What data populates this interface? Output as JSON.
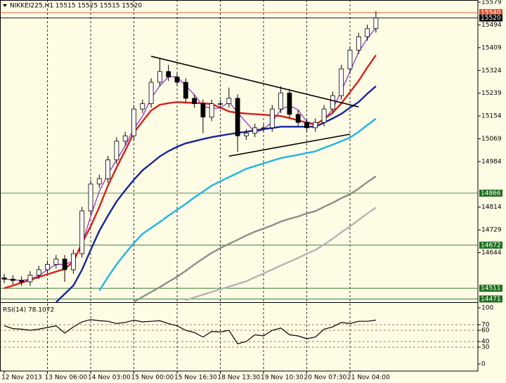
{
  "chart_data": [
    {
      "type": "candlestick",
      "title": "NIKKEI225,H1  15515 15525 15515 15520",
      "categories": [
        "12 Nov 2013",
        null,
        null,
        null,
        null,
        "13 Nov 06:00",
        null,
        null,
        null,
        null,
        "14 Nov 03:00",
        null,
        null,
        null,
        null,
        "15 Nov 00:00",
        null,
        null,
        null,
        null,
        "15 Nov 16:30",
        null,
        null,
        null,
        null,
        "18 Nov 13:30",
        null,
        null,
        null,
        null,
        "19 Nov 10:30",
        null,
        null,
        null,
        null,
        "20 Nov 07:30",
        null,
        null,
        null,
        null,
        "21 Nov 04:00",
        null,
        null,
        null
      ],
      "open": [
        14550,
        14545,
        14540,
        14535,
        14560,
        14580,
        14600,
        14620,
        14580,
        14640,
        14800,
        14900,
        14920,
        14990,
        15060,
        15080,
        15180,
        15200,
        15280,
        15320,
        15300,
        15280,
        15220,
        15200,
        15150,
        15200,
        15200,
        15220,
        15080,
        15090,
        15110,
        15110,
        15180,
        15240,
        15160,
        15130,
        15110,
        15130,
        15180,
        15230,
        15330,
        15400,
        15450,
        15480
      ],
      "high": [
        14565,
        14560,
        14555,
        14575,
        14595,
        14615,
        14635,
        14635,
        14655,
        14815,
        14915,
        14935,
        15005,
        15075,
        15095,
        15195,
        15215,
        15295,
        15370,
        15345,
        15315,
        15295,
        15235,
        15215,
        15215,
        15215,
        15260,
        15235,
        15105,
        15125,
        15125,
        15195,
        15265,
        15255,
        15175,
        15145,
        15145,
        15195,
        15245,
        15345,
        15415,
        15465,
        15495,
        15545
      ],
      "low": [
        14530,
        14525,
        14520,
        14520,
        14545,
        14565,
        14585,
        14535,
        14565,
        14625,
        14785,
        14885,
        14905,
        14975,
        15045,
        15065,
        15165,
        15185,
        15265,
        15285,
        15265,
        15205,
        15185,
        15090,
        15135,
        15185,
        15185,
        15020,
        15065,
        15075,
        15095,
        15095,
        15165,
        15145,
        15115,
        15095,
        15095,
        15115,
        15165,
        15215,
        15315,
        15385,
        15435,
        15465
      ],
      "close": [
        14545,
        14540,
        14535,
        14560,
        14580,
        14600,
        14620,
        14580,
        14640,
        14800,
        14900,
        14920,
        14990,
        15060,
        15080,
        15180,
        15200,
        15280,
        15320,
        15300,
        15280,
        15220,
        15200,
        15150,
        15200,
        15200,
        15220,
        15080,
        15090,
        15110,
        15110,
        15180,
        15240,
        15160,
        15130,
        15110,
        15130,
        15180,
        15230,
        15330,
        15400,
        15450,
        15480,
        15520
      ],
      "series": [
        {
          "color": "#9932cc",
          "values": [
            14545,
            14543,
            14540,
            14545,
            14558,
            14580,
            14600,
            14600,
            14613,
            14673,
            14780,
            14873,
            14937,
            14990,
            15043,
            15107,
            15153,
            15220,
            15267,
            15300,
            15300,
            15267,
            15233,
            15190,
            15183,
            15183,
            15207,
            15167,
            15130,
            15093,
            15103,
            15133,
            15177,
            15193,
            15177,
            15133,
            15123,
            15140,
            15180,
            15247,
            15320,
            15393,
            15443,
            15483
          ]
        },
        {
          "color": "#d42020",
          "values": [
            14511,
            14521,
            14532,
            14542,
            14553,
            14563,
            14573,
            14583,
            14611,
            14679,
            14742,
            14814,
            14894,
            14962,
            15025,
            15092,
            15134,
            15175,
            15196,
            15202,
            15206,
            15204,
            15203,
            15201,
            15199,
            15185,
            15171,
            15166,
            15163,
            15161,
            15159,
            15156,
            15154,
            15146,
            15138,
            15129,
            15121,
            15143,
            15166,
            15201,
            15243,
            15285,
            15335,
            15381
          ]
        },
        {
          "color": "#1424a0",
          "values": [
            null,
            null,
            null,
            null,
            null,
            null,
            14459,
            14490,
            14521,
            14580,
            14654,
            14725,
            14782,
            14835,
            14877,
            14916,
            14951,
            14977,
            15003,
            15023,
            15039,
            15052,
            15060,
            15068,
            15075,
            15081,
            15086,
            15091,
            15095,
            15100,
            15105,
            15109,
            15114,
            15114,
            15114,
            15114,
            15114,
            15129,
            15145,
            15162,
            15185,
            15206,
            15237,
            15265
          ]
        },
        {
          "color": "#20b4e6",
          "values": [
            null,
            null,
            null,
            null,
            null,
            null,
            null,
            null,
            null,
            null,
            null,
            14502,
            14553,
            14600,
            14641,
            14680,
            14714,
            14736,
            14758,
            14782,
            14804,
            14826,
            14850,
            14872,
            14894,
            14910,
            14926,
            14941,
            14957,
            14967,
            14977,
            14987,
            14997,
            15003,
            15009,
            15016,
            15022,
            15035,
            15047,
            15060,
            15073,
            15095,
            15120,
            15144
          ]
        },
        {
          "color": "#8c8c8c",
          "values": [
            null,
            null,
            null,
            null,
            null,
            null,
            null,
            null,
            null,
            null,
            null,
            null,
            null,
            null,
            null,
            14460,
            14479,
            14497,
            14515,
            14535,
            14554,
            14576,
            14600,
            14622,
            14643,
            14661,
            14677,
            14692,
            14708,
            14722,
            14734,
            14746,
            14760,
            14770,
            14779,
            14790,
            14799,
            14815,
            14830,
            14847,
            14862,
            14883,
            14907,
            14929
          ]
        },
        {
          "color": "#b4b4b4",
          "values": [
            null,
            null,
            null,
            null,
            null,
            null,
            null,
            null,
            null,
            null,
            null,
            null,
            null,
            null,
            null,
            null,
            null,
            null,
            null,
            null,
            null,
            14466,
            14477,
            14487,
            14497,
            14507,
            14517,
            14527,
            14537,
            14552,
            14566,
            14581,
            14596,
            14610,
            14624,
            14640,
            14654,
            14674,
            14696,
            14720,
            14742,
            14766,
            14790,
            14812
          ]
        }
      ],
      "trendlines": [
        {
          "x": [
            17,
            41
          ],
          "y": [
            15377,
            15188
          ]
        },
        {
          "x": [
            26,
            40
          ],
          "y": [
            15004,
            15086
          ]
        }
      ],
      "levels": [
        {
          "value": 15540,
          "color": "#e0502c"
        },
        {
          "value": 15520,
          "color": "#000000"
        },
        {
          "value": 14866,
          "color": "#1e6e1e"
        },
        {
          "value": 14672,
          "color": "#1e6e1e"
        },
        {
          "value": 14511,
          "color": "#1e6e1e"
        },
        {
          "value": 14471,
          "color": "#1e6e1e"
        }
      ],
      "ylim": [
        14459,
        15587
      ],
      "yticks": [
        15579,
        15494,
        15409,
        15324,
        15239,
        15154,
        15069,
        14984,
        14814,
        14729,
        14644
      ],
      "grid": true
    },
    {
      "type": "line",
      "title": "RSI(14) 78.1072",
      "color": "#000000",
      "values": [
        68,
        63,
        62,
        60,
        62,
        65,
        68,
        55,
        66,
        75,
        79,
        77,
        76,
        72,
        74,
        78,
        75,
        76,
        77,
        72,
        68,
        60,
        56,
        48,
        58,
        57,
        60,
        36,
        40,
        52,
        50,
        60,
        64,
        52,
        50,
        45,
        48,
        62,
        66,
        74,
        72,
        76,
        76,
        78.1
      ],
      "levels": [
        70,
        60,
        40,
        30
      ],
      "ylim": [
        -12.5,
        107.5
      ],
      "yticks": [
        100,
        70,
        60,
        40,
        30,
        0
      ]
    }
  ]
}
